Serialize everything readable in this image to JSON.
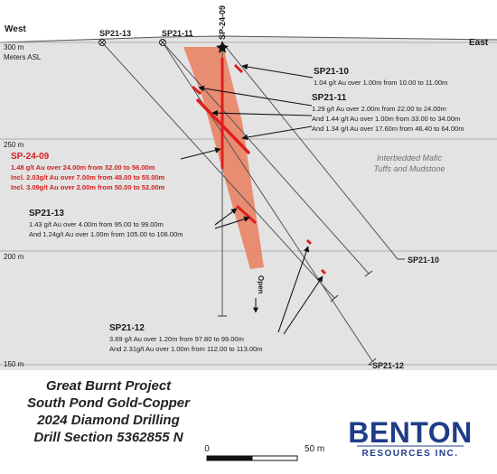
{
  "section": {
    "west_label": "West",
    "east_label": "East",
    "elevation_labels": [
      "300 m",
      "250 m",
      "200 m",
      "150 m"
    ],
    "elevation_unit": "Meters ASL",
    "unit_label": "Interbedded Mafic Tuffs and Mudstone",
    "unit_line1": "Interbedded Mafic",
    "unit_line2": "Tuffs and Mudstone",
    "open_label": "Open",
    "colors": {
      "background": "#e3e3e3",
      "zone": "#e8876b",
      "intercept": "#e01e1e",
      "highlight": "#d42020",
      "drillhole": "#555555"
    }
  },
  "holes": {
    "sp2113": "SP21-13",
    "sp2111": "SP21-11",
    "sp2409": "SP-24-09",
    "sp2110": "SP21-10",
    "sp2112": "SP21-12"
  },
  "callouts": {
    "sp2110": {
      "title": "SP21-10",
      "lines": [
        "1.04 g/t Au over 1.00m from 10.00 to 11.00m"
      ]
    },
    "sp2111": {
      "title": "SP21-11",
      "lines": [
        "1.29 g/t Au over 2.00m from 22.00 to 24.00m",
        "And 1.44 g/t Au over 1.00m from 33.00 to 34.00m",
        "And 1.34 g/t Au over 17.60m from 46.40 to 64.00m"
      ]
    },
    "sp2409": {
      "title": "SP-24-09",
      "lines": [
        "1.48 g/t Au over 24.00m from 32.00 to 56.00m",
        "Incl. 2.03g/t Au over 7.00m from 48.00 to 55.00m",
        "Incl. 3.09g/t Au over 2.00m from 50.00 to 52.00m"
      ]
    },
    "sp2113": {
      "title": "SP21-13",
      "lines": [
        "1.43 g/t Au over 4.00m from 95.00 to 99.00m",
        "And 1.24g/t Au over 1.00m from 105.00 to 106.00m"
      ]
    },
    "sp2112": {
      "title": "SP21-12",
      "lines": [
        "3.69 g/t Au over 1.20m from 97.80 to 99.00m",
        "And 2.31g/t Au over 1.00m from 112.00 to 113.00m"
      ]
    }
  },
  "title_block": {
    "line1": "Great Burnt Project",
    "line2": "South Pond Gold-Copper",
    "line3": "2024 Diamond Drilling",
    "line4": "Drill Section 5362855 N"
  },
  "scale": {
    "zero_label": "0",
    "end_label": "50 m"
  },
  "logo": {
    "word": "BENTON",
    "sub": "RESOURCES INC."
  }
}
